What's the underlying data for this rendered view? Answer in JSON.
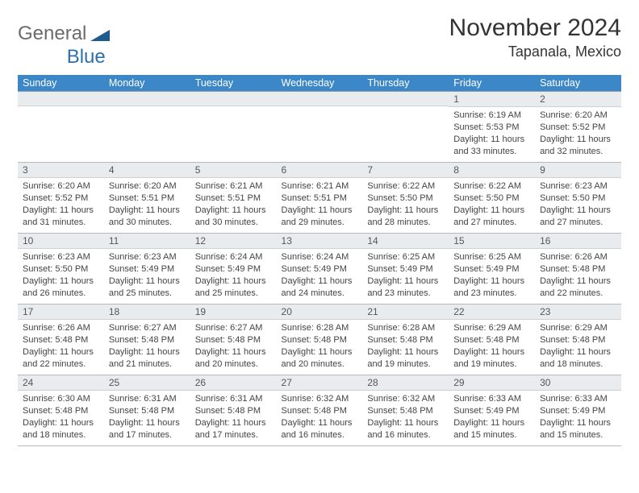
{
  "logo": {
    "text1": "General",
    "text2": "Blue",
    "shape_color": "#1f5b8f"
  },
  "title": "November 2024",
  "location": "Tapanala, Mexico",
  "colors": {
    "header_bg": "#3b87c8",
    "header_text": "#ffffff",
    "daynum_bg": "#e9ecef",
    "cell_border": "#b8b8b8",
    "body_text": "#444444"
  },
  "day_headers": [
    "Sunday",
    "Monday",
    "Tuesday",
    "Wednesday",
    "Thursday",
    "Friday",
    "Saturday"
  ],
  "weeks": [
    [
      null,
      null,
      null,
      null,
      null,
      {
        "n": "1",
        "sunrise": "6:19 AM",
        "sunset": "5:53 PM",
        "daylight": "11 hours and 33 minutes."
      },
      {
        "n": "2",
        "sunrise": "6:20 AM",
        "sunset": "5:52 PM",
        "daylight": "11 hours and 32 minutes."
      }
    ],
    [
      {
        "n": "3",
        "sunrise": "6:20 AM",
        "sunset": "5:52 PM",
        "daylight": "11 hours and 31 minutes."
      },
      {
        "n": "4",
        "sunrise": "6:20 AM",
        "sunset": "5:51 PM",
        "daylight": "11 hours and 30 minutes."
      },
      {
        "n": "5",
        "sunrise": "6:21 AM",
        "sunset": "5:51 PM",
        "daylight": "11 hours and 30 minutes."
      },
      {
        "n": "6",
        "sunrise": "6:21 AM",
        "sunset": "5:51 PM",
        "daylight": "11 hours and 29 minutes."
      },
      {
        "n": "7",
        "sunrise": "6:22 AM",
        "sunset": "5:50 PM",
        "daylight": "11 hours and 28 minutes."
      },
      {
        "n": "8",
        "sunrise": "6:22 AM",
        "sunset": "5:50 PM",
        "daylight": "11 hours and 27 minutes."
      },
      {
        "n": "9",
        "sunrise": "6:23 AM",
        "sunset": "5:50 PM",
        "daylight": "11 hours and 27 minutes."
      }
    ],
    [
      {
        "n": "10",
        "sunrise": "6:23 AM",
        "sunset": "5:50 PM",
        "daylight": "11 hours and 26 minutes."
      },
      {
        "n": "11",
        "sunrise": "6:23 AM",
        "sunset": "5:49 PM",
        "daylight": "11 hours and 25 minutes."
      },
      {
        "n": "12",
        "sunrise": "6:24 AM",
        "sunset": "5:49 PM",
        "daylight": "11 hours and 25 minutes."
      },
      {
        "n": "13",
        "sunrise": "6:24 AM",
        "sunset": "5:49 PM",
        "daylight": "11 hours and 24 minutes."
      },
      {
        "n": "14",
        "sunrise": "6:25 AM",
        "sunset": "5:49 PM",
        "daylight": "11 hours and 23 minutes."
      },
      {
        "n": "15",
        "sunrise": "6:25 AM",
        "sunset": "5:49 PM",
        "daylight": "11 hours and 23 minutes."
      },
      {
        "n": "16",
        "sunrise": "6:26 AM",
        "sunset": "5:48 PM",
        "daylight": "11 hours and 22 minutes."
      }
    ],
    [
      {
        "n": "17",
        "sunrise": "6:26 AM",
        "sunset": "5:48 PM",
        "daylight": "11 hours and 22 minutes."
      },
      {
        "n": "18",
        "sunrise": "6:27 AM",
        "sunset": "5:48 PM",
        "daylight": "11 hours and 21 minutes."
      },
      {
        "n": "19",
        "sunrise": "6:27 AM",
        "sunset": "5:48 PM",
        "daylight": "11 hours and 20 minutes."
      },
      {
        "n": "20",
        "sunrise": "6:28 AM",
        "sunset": "5:48 PM",
        "daylight": "11 hours and 20 minutes."
      },
      {
        "n": "21",
        "sunrise": "6:28 AM",
        "sunset": "5:48 PM",
        "daylight": "11 hours and 19 minutes."
      },
      {
        "n": "22",
        "sunrise": "6:29 AM",
        "sunset": "5:48 PM",
        "daylight": "11 hours and 19 minutes."
      },
      {
        "n": "23",
        "sunrise": "6:29 AM",
        "sunset": "5:48 PM",
        "daylight": "11 hours and 18 minutes."
      }
    ],
    [
      {
        "n": "24",
        "sunrise": "6:30 AM",
        "sunset": "5:48 PM",
        "daylight": "11 hours and 18 minutes."
      },
      {
        "n": "25",
        "sunrise": "6:31 AM",
        "sunset": "5:48 PM",
        "daylight": "11 hours and 17 minutes."
      },
      {
        "n": "26",
        "sunrise": "6:31 AM",
        "sunset": "5:48 PM",
        "daylight": "11 hours and 17 minutes."
      },
      {
        "n": "27",
        "sunrise": "6:32 AM",
        "sunset": "5:48 PM",
        "daylight": "11 hours and 16 minutes."
      },
      {
        "n": "28",
        "sunrise": "6:32 AM",
        "sunset": "5:48 PM",
        "daylight": "11 hours and 16 minutes."
      },
      {
        "n": "29",
        "sunrise": "6:33 AM",
        "sunset": "5:49 PM",
        "daylight": "11 hours and 15 minutes."
      },
      {
        "n": "30",
        "sunrise": "6:33 AM",
        "sunset": "5:49 PM",
        "daylight": "11 hours and 15 minutes."
      }
    ]
  ],
  "labels": {
    "sunrise": "Sunrise: ",
    "sunset": "Sunset: ",
    "daylight": "Daylight: "
  }
}
